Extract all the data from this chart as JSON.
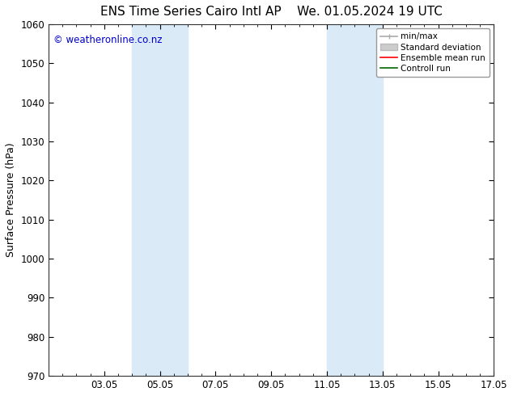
{
  "title_left": "ENS Time Series Cairo Intl AP",
  "title_right": "We. 01.05.2024 19 UTC",
  "ylabel": "Surface Pressure (hPa)",
  "ylim": [
    970,
    1060
  ],
  "yticks": [
    970,
    980,
    990,
    1000,
    1010,
    1020,
    1030,
    1040,
    1050,
    1060
  ],
  "xlim": [
    1.0,
    17.0
  ],
  "xtick_labels": [
    "03.05",
    "05.05",
    "07.05",
    "09.05",
    "11.05",
    "13.05",
    "15.05",
    "17.05"
  ],
  "xtick_positions": [
    3,
    5,
    7,
    9,
    11,
    13,
    15,
    17
  ],
  "shaded_bands": [
    {
      "x_start": 4.0,
      "x_end": 6.0,
      "color": "#daeaf7"
    },
    {
      "x_start": 11.0,
      "x_end": 13.0,
      "color": "#daeaf7"
    }
  ],
  "watermark": "© weatheronline.co.nz",
  "watermark_color": "#0000cc",
  "background_color": "#ffffff",
  "font_family": "DejaVu Sans",
  "title_fontsize": 11,
  "axis_fontsize": 9,
  "tick_fontsize": 8.5
}
